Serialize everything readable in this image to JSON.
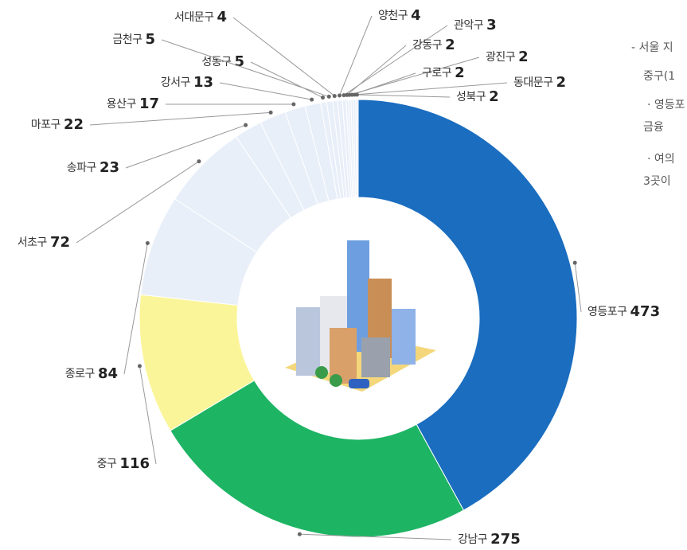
{
  "chart_data": {
    "type": "donut",
    "categories": [
      "영등포구",
      "강남구",
      "중구",
      "종로구",
      "서초구",
      "송파구",
      "마포구",
      "용산구",
      "강서구",
      "성동구",
      "금천구",
      "서대문구",
      "양천구",
      "관악구",
      "강동구",
      "광진구",
      "구로구",
      "동대문구",
      "성북구"
    ],
    "values": [
      473,
      275,
      116,
      84,
      72,
      23,
      22,
      17,
      13,
      5,
      5,
      4,
      4,
      3,
      2,
      2,
      2,
      2,
      2
    ],
    "colors": [
      "#1a6dbf",
      "#1db464",
      "#fbf59a",
      "#e9eff9",
      "#e9eff9",
      "#e9eff9",
      "#e9eff9",
      "#e9eff9",
      "#e9eff9",
      "#e9eff9",
      "#e9eff9",
      "#e9eff9",
      "#e9eff9",
      "#e9eff9",
      "#e9eff9",
      "#e9eff9",
      "#e9eff9",
      "#e9eff9",
      "#e9eff9"
    ],
    "annotations": [
      "- 서울 지",
      "중구(1",
      "· 영등포",
      "금융",
      "· 여의",
      "3곳이"
    ]
  }
}
